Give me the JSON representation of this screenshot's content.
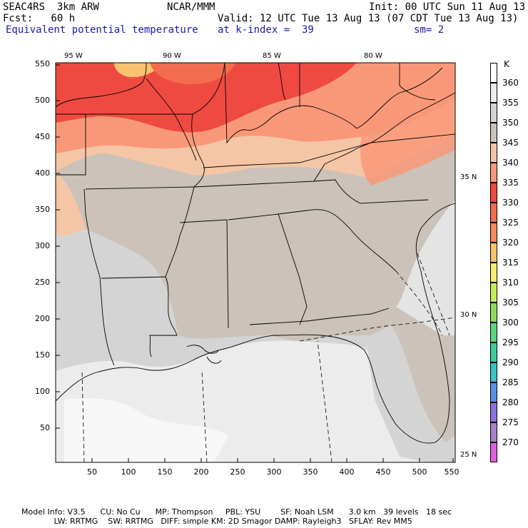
{
  "header": {
    "experiment": "SEAC4RS  3km ARW",
    "center": "NCAR/MMM",
    "init": "Init: 00 UTC Sun 11 Aug 13",
    "forecast": "Fcst:   60 h",
    "valid": "Valid: 12 UTC Tue 13 Aug 13 (07 CDT Tue 13 Aug 13)",
    "field": "Equivalent potential temperature",
    "level": "at k-index =  39",
    "smoothing": "sm= 2"
  },
  "map": {
    "y_ticks": [
      "550",
      "500",
      "450",
      "400",
      "350",
      "300",
      "250",
      "200",
      "150",
      "100",
      "50"
    ],
    "x_ticks": [
      "50",
      "100",
      "150",
      "200",
      "250",
      "300",
      "350",
      "400",
      "450",
      "500",
      "550"
    ],
    "lon_labels": [
      "95 W",
      "90 W",
      "85 W",
      "80 W"
    ],
    "lat_labels": [
      "35 N",
      "30 N",
      "25 N"
    ]
  },
  "legend": {
    "unit": "K",
    "levels": [
      {
        "value": "360",
        "color": "#ffffff"
      },
      {
        "value": "355",
        "color": "#ececec"
      },
      {
        "value": "350",
        "color": "#d4d4d4"
      },
      {
        "value": "345",
        "color": "#cbc2b9"
      },
      {
        "value": "340",
        "color": "#f4c6a5"
      },
      {
        "value": "335",
        "color": "#f99878"
      },
      {
        "value": "330",
        "color": "#ef4a42"
      },
      {
        "value": "325",
        "color": "#f16d4d"
      },
      {
        "value": "320",
        "color": "#f98a5a"
      },
      {
        "value": "315",
        "color": "#f9c26e"
      },
      {
        "value": "310",
        "color": "#f2ee6e"
      },
      {
        "value": "305",
        "color": "#c5ec5a"
      },
      {
        "value": "300",
        "color": "#8ddc5a"
      },
      {
        "value": "295",
        "color": "#5ad67a"
      },
      {
        "value": "290",
        "color": "#3ccc9c"
      },
      {
        "value": "285",
        "color": "#39c3c5"
      },
      {
        "value": "280",
        "color": "#5a8ee4"
      },
      {
        "value": "275",
        "color": "#8a73de"
      },
      {
        "value": "270",
        "color": "#a882cc"
      },
      {
        "value": "",
        "color": "#e05ee0"
      }
    ]
  },
  "footer": {
    "line1": "Model Info: V3.5      CU: No Cu      MP: Thompson     PBL: YSU        SF: Noah LSM      3.0 km   39 levels   18 sec",
    "line2": "             LW: RRTMG    SW: RRTMG   DIFF: simple KM: 2D Smagor DAMP: Rayleigh3   SFLAY: Rev MM5"
  }
}
